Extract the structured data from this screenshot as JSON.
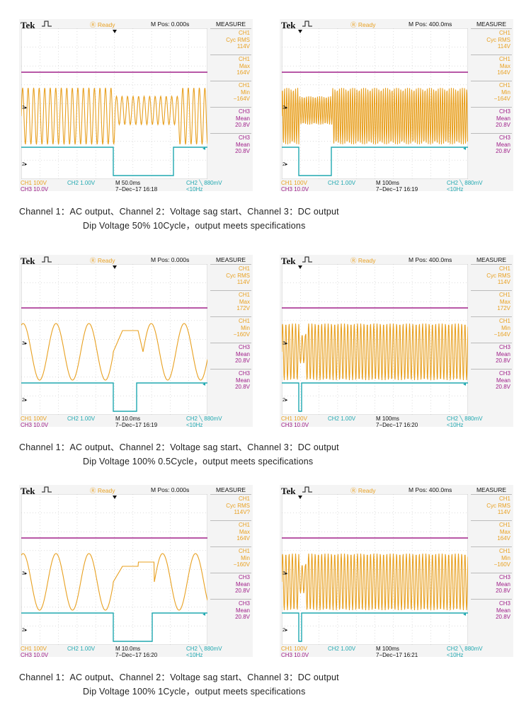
{
  "colors": {
    "ch1": "#e8a020",
    "ch2": "#20a8b0",
    "ch3": "#a0208a",
    "grid": "#c9c9c9"
  },
  "groups": [
    {
      "caption_line1": "Channel 1：AC output、Channel 2：Voltage sag start、Channel 3：DC output",
      "caption_line2": "Dip Voltage 50% 10Cycle，output meets specifications",
      "scopes": [
        {
          "brand": "Tek",
          "status": "Ready",
          "mpos": "M Pos: 0.000s",
          "measure_title": "MEASURE",
          "measure": [
            [
              "CH1",
              "Cyc RMS",
              "114V"
            ],
            [
              "CH1",
              "Max",
              "164V"
            ],
            [
              "CH1",
              "Min",
              "−164V"
            ],
            [
              "CH3",
              "Mean",
              "20.8V"
            ],
            [
              "CH3",
              "Mean",
              "20.8V"
            ]
          ],
          "ch1_scale": "CH1  100V",
          "ch2_scale": "CH2  1.00V",
          "ch3_scale": "CH3  10.0V",
          "timebase": "M 50.0ms",
          "date": "7−Dec−17 16:18",
          "trigger": "CH2 ╲ 880mV",
          "freq": "<10Hz"
        },
        {
          "brand": "Tek",
          "status": "Ready",
          "mpos": "M Pos: 400.0ms",
          "measure_title": "MEASURE",
          "measure": [
            [
              "CH1",
              "Cyc RMS",
              "114V"
            ],
            [
              "CH1",
              "Max",
              "164V"
            ],
            [
              "CH1",
              "Min",
              "−164V"
            ],
            [
              "CH3",
              "Mean",
              "20.8V"
            ],
            [
              "CH3",
              "Mean",
              "20.8V"
            ]
          ],
          "ch1_scale": "CH1  100V",
          "ch2_scale": "CH2  1.00V",
          "ch3_scale": "CH3  10.0V",
          "timebase": "M 100ms",
          "date": "7−Dec−17 16:19",
          "trigger": "CH2 ╲ 880mV",
          "freq": "<10Hz"
        }
      ]
    },
    {
      "caption_line1": "Channel 1：AC output、Channel 2：Voltage sag start、Channel 3：DC output",
      "caption_line2": "Dip Voltage 100% 0.5Cycle，output meets specifications",
      "scopes": [
        {
          "brand": "Tek",
          "status": "Ready",
          "mpos": "M Pos: 0.000s",
          "measure_title": "MEASURE",
          "measure": [
            [
              "CH1",
              "Cyc RMS",
              "114V"
            ],
            [
              "CH1",
              "Max",
              "172V"
            ],
            [
              "CH1",
              "Min",
              "−160V"
            ],
            [
              "CH3",
              "Mean",
              "20.8V"
            ],
            [
              "CH3",
              "Mean",
              "20.8V"
            ]
          ],
          "ch1_scale": "CH1  100V",
          "ch2_scale": "CH2  1.00V",
          "ch3_scale": "CH3  10.0V",
          "timebase": "M 10.0ms",
          "date": "7−Dec−17 16:19",
          "trigger": "CH2 ╲ 880mV",
          "freq": "<10Hz"
        },
        {
          "brand": "Tek",
          "status": "Ready",
          "mpos": "M Pos: 400.0ms",
          "measure_title": "MEASURE",
          "measure": [
            [
              "CH1",
              "Cyc RMS",
              "114V"
            ],
            [
              "CH1",
              "Max",
              "172V"
            ],
            [
              "CH1",
              "Min",
              "−164V"
            ],
            [
              "CH3",
              "Mean",
              "20.8V"
            ],
            [
              "CH3",
              "Mean",
              "20.8V"
            ]
          ],
          "ch1_scale": "CH1  100V",
          "ch2_scale": "CH2  1.00V",
          "ch3_scale": "CH3  10.0V",
          "timebase": "M 100ms",
          "date": "7−Dec−17 16:20",
          "trigger": "CH2 ╲ 880mV",
          "freq": "<10Hz"
        }
      ]
    },
    {
      "caption_line1": "Channel 1：AC output、Channel 2：Voltage sag start、Channel 3：DC output",
      "caption_line2": "Dip Voltage 100% 1Cycle，output meets specifications",
      "scopes": [
        {
          "brand": "Tek",
          "status": "Ready",
          "mpos": "M Pos: 0.000s",
          "measure_title": "MEASURE",
          "measure": [
            [
              "CH1",
              "Cyc RMS",
              "114V?"
            ],
            [
              "CH1",
              "Max",
              "164V"
            ],
            [
              "CH1",
              "Min",
              "−160V"
            ],
            [
              "CH3",
              "Mean",
              "20.8V"
            ],
            [
              "CH3",
              "Mean",
              "20.8V"
            ]
          ],
          "ch1_scale": "CH1  100V",
          "ch2_scale": "CH2  1.00V",
          "ch3_scale": "CH3  10.0V",
          "timebase": "M 10.0ms",
          "date": "7−Dec−17 16:20",
          "trigger": "CH2 ╲ 880mV",
          "freq": "<10Hz"
        },
        {
          "brand": "Tek",
          "status": "Ready",
          "mpos": "M Pos: 400.0ms",
          "measure_title": "MEASURE",
          "measure": [
            [
              "CH1",
              "Cyc RMS",
              "114V"
            ],
            [
              "CH1",
              "Max",
              "164V"
            ],
            [
              "CH1",
              "Min",
              "−160V"
            ],
            [
              "CH3",
              "Mean",
              "20.8V"
            ],
            [
              "CH3",
              "Mean",
              "20.8V"
            ]
          ],
          "ch1_scale": "CH1  100V",
          "ch2_scale": "CH2  1.00V",
          "ch3_scale": "CH3  10.0V",
          "timebase": "M 100ms",
          "date": "7−Dec−17 16:21",
          "trigger": "CH2 ╲ 880mV",
          "freq": "<10Hz"
        }
      ]
    }
  ]
}
